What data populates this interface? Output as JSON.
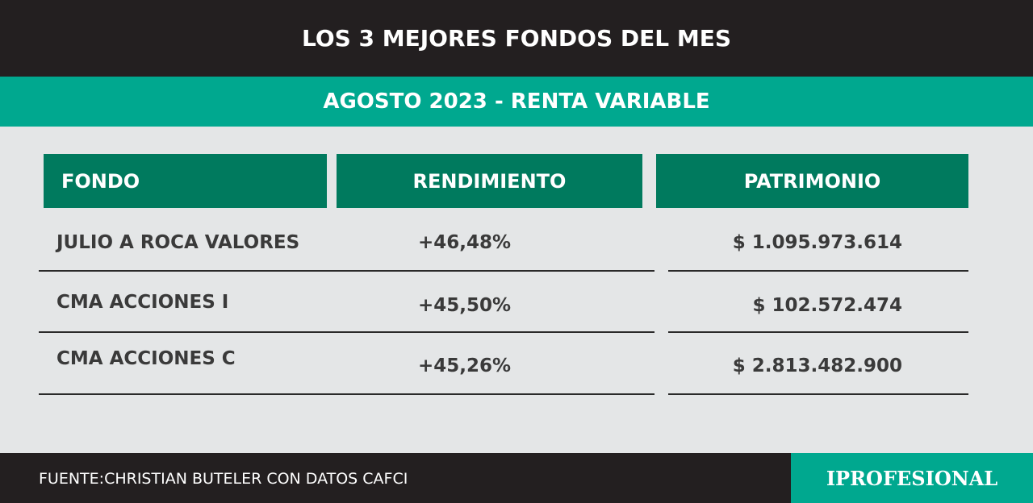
{
  "header": {
    "title": "LOS 3 MEJORES FONDOS DEL MES",
    "subtitle": "AGOSTO 2023 - RENTA VARIABLE"
  },
  "table": {
    "columns": [
      "FONDO",
      "RENDIMIENTO",
      "PATRIMONIO"
    ],
    "rows": [
      [
        "JULIO A ROCA VALORES",
        "+46,48%",
        "$ 1.095.973.614"
      ],
      [
        "CMA ACCIONES I",
        "+45,50%",
        "$ 102.572.474"
      ],
      [
        "CMA ACCIONES C",
        "+45,26%",
        "$ 2.813.482.900"
      ]
    ]
  },
  "footer": {
    "source": "FUENTE:CHRISTIAN BUTELER CON DATOS CAFCI",
    "brand": "IPROFESIONAL"
  }
}
